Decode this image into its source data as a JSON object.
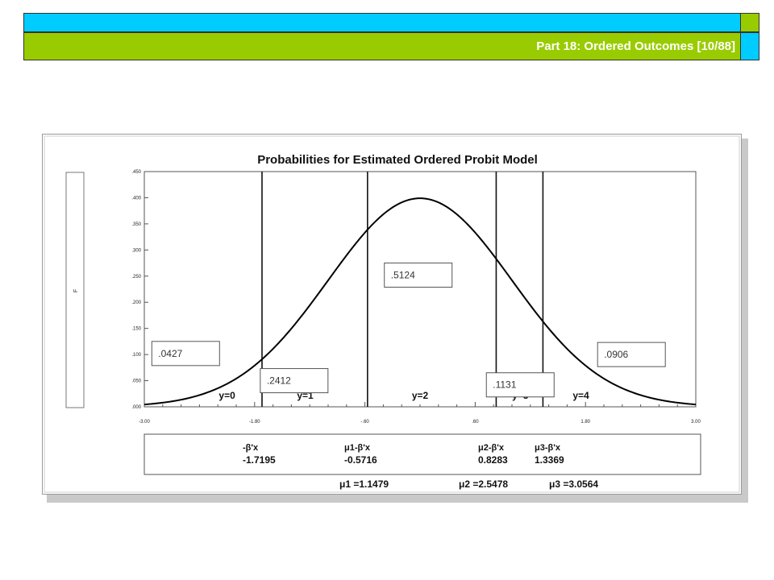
{
  "header": {
    "title": "Part 18: Ordered Outcomes [10/88]",
    "colors": {
      "cyan": "#00ccff",
      "green": "#99cc00"
    }
  },
  "chart_data": {
    "type": "line",
    "title": "Probabilities for Estimated Ordered Probit Model",
    "ylabel": "F",
    "xlim": [
      -3.0,
      3.0
    ],
    "ylim": [
      0.0,
      0.45
    ],
    "x_ticks": [
      "-3.00",
      "-1.80",
      "-.60",
      ".60",
      "1.80",
      "3.00"
    ],
    "x_tick_values": [
      -3.0,
      -1.8,
      -0.6,
      0.6,
      1.8,
      3.0
    ],
    "y_ticks": [
      ".000",
      ".050",
      ".100",
      ".150",
      ".200",
      ".250",
      ".300",
      ".350",
      ".400",
      ".450"
    ],
    "y_tick_values": [
      0,
      0.05,
      0.1,
      0.15,
      0.2,
      0.25,
      0.3,
      0.35,
      0.4,
      0.45
    ],
    "curve": "standard normal density",
    "thresholds": [
      -1.7195,
      -0.5716,
      0.8283,
      1.3369
    ],
    "regions": [
      {
        "label": "y=0",
        "x": -2.1,
        "prob": ".0427",
        "box_x": -2.55,
        "box_y": 0.102
      },
      {
        "label": "y=1",
        "x": -1.25,
        "prob": ".2412",
        "box_x": -1.37,
        "box_y": 0.05
      },
      {
        "label": "y=2",
        "x": 0.0,
        "prob": ".5124",
        "box_x": -0.02,
        "box_y": 0.252
      },
      {
        "label": "y=3",
        "x": 1.09,
        "prob": ".1131",
        "box_x": 1.09,
        "box_y": 0.042
      },
      {
        "label": "y=4",
        "x": 1.75,
        "prob": ".0906",
        "box_x": 2.3,
        "box_y": 0.1
      }
    ],
    "cutoff_rows": {
      "labels": [
        "-β'x",
        "μ1-β'x",
        "μ2-β'x",
        "μ3-β'x"
      ],
      "values": [
        "-1.7195",
        "-0.5716",
        "0.8283",
        "1.3369"
      ]
    },
    "mu_values": [
      "μ1 =1.1479",
      "μ2 =2.5478",
      "μ3 =3.0564"
    ],
    "grid": false
  }
}
